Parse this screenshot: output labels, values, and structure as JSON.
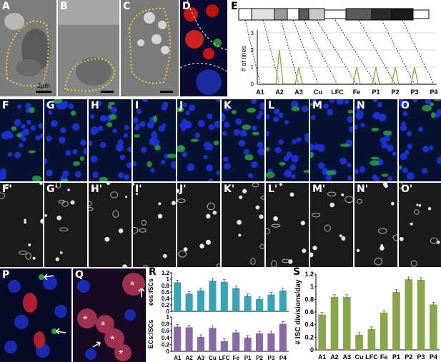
{
  "panels": {
    "A": "A",
    "B": "B",
    "C": "C",
    "D": "D",
    "E": "E",
    "F": "F",
    "G": "G",
    "H": "H",
    "I": "I",
    "J": "J",
    "K": "K",
    "L": "L",
    "M": "M",
    "N": "N",
    "O": "O",
    "F2": "F'",
    "G2": "G'",
    "H2": "H'",
    "I2": "I'",
    "J2": "J'",
    "K2": "K'",
    "L2": "L'",
    "M2": "M'",
    "N2": "N'",
    "O2": "O'",
    "P": "P",
    "Q": "Q",
    "R": "R",
    "S": "S"
  },
  "scalebar_label": "2μm",
  "chart_data": [
    {
      "type": "line",
      "panel": "E",
      "ylabel": "# of lines",
      "categories": [
        "A1",
        "A2",
        "A3",
        "Cu",
        "LFC",
        "Fe",
        "P1",
        "P2",
        "P3",
        "P4"
      ],
      "values": [
        0,
        2,
        1,
        0,
        0,
        1,
        1,
        1,
        1,
        0
      ],
      "ylim": [
        0,
        3
      ],
      "yticks": [
        0,
        1,
        2,
        3
      ],
      "grid": true
    },
    {
      "type": "bar",
      "panel": "R-top",
      "ylabel": "ees:ISCs",
      "categories": [
        "A1",
        "A2",
        "A3",
        "Cu",
        "LFC",
        "Fe",
        "P1",
        "P2",
        "P3",
        "P4"
      ],
      "values": [
        0.9,
        0.55,
        0.65,
        0.95,
        0.92,
        0.72,
        0.48,
        0.38,
        0.52,
        0.65
      ],
      "ylim": [
        0,
        1.2
      ],
      "yticks": [
        "0",
        "0.2",
        "0.4",
        "0.6",
        "0.8",
        "1",
        "1.2"
      ],
      "color": "#3aa3b4"
    },
    {
      "type": "bar",
      "panel": "R-bottom",
      "ylabel": "ECs:ISCs",
      "categories": [
        "A1",
        "A2",
        "A3",
        "Cu",
        "LFC",
        "Fe",
        "P1",
        "P2",
        "P3",
        "P4"
      ],
      "values": [
        0.72,
        0.7,
        0.42,
        0.68,
        0.3,
        0.55,
        0.4,
        0.52,
        0.52,
        0.8
      ],
      "ylim": [
        0,
        1
      ],
      "yticks": [
        "0",
        "0.2",
        "0.4",
        "0.6",
        "0.8",
        "1"
      ],
      "color": "#8a6aa3"
    },
    {
      "type": "bar",
      "panel": "S",
      "ylabel": "# ISC divisions/day",
      "categories": [
        "A1",
        "A2",
        "A3",
        "Cu",
        "LFC",
        "Fe",
        "P1",
        "P2",
        "P3",
        "P4"
      ],
      "values": [
        0.56,
        0.84,
        0.84,
        0.24,
        0.33,
        0.59,
        0.92,
        1.12,
        1.11,
        0.72
      ],
      "ylim": [
        0,
        1.2
      ],
      "yticks": [
        "0",
        "0.2",
        "0.4",
        "0.6",
        "0.8",
        "1",
        "1.2"
      ],
      "color": "#8aa64a"
    }
  ]
}
